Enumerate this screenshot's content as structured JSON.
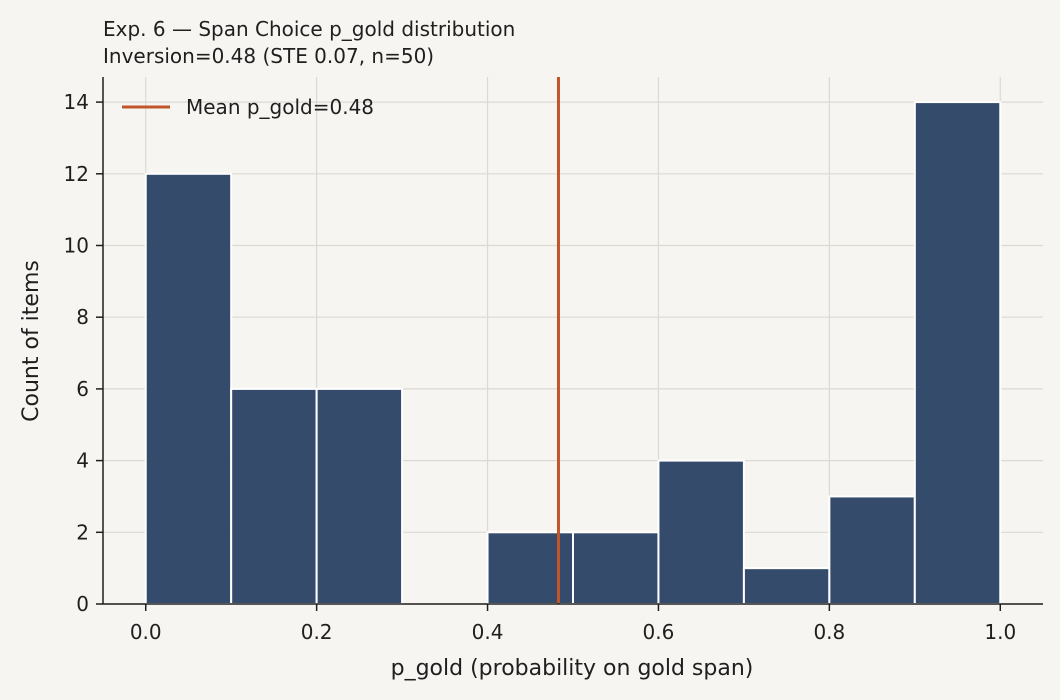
{
  "chart_data": {
    "type": "bar",
    "title_line1": "Exp. 6 — Span Choice p_gold distribution",
    "title_line2": "Inversion=0.48 (STE 0.07, n=50)",
    "xlabel": "p_gold (probability on gold span)",
    "ylabel": "Count of items",
    "bins": [
      {
        "x0": 0.0,
        "x1": 0.1,
        "count": 12
      },
      {
        "x0": 0.1,
        "x1": 0.2,
        "count": 6
      },
      {
        "x0": 0.2,
        "x1": 0.3,
        "count": 6
      },
      {
        "x0": 0.3,
        "x1": 0.4,
        "count": 0
      },
      {
        "x0": 0.4,
        "x1": 0.5,
        "count": 2
      },
      {
        "x0": 0.5,
        "x1": 0.6,
        "count": 2
      },
      {
        "x0": 0.6,
        "x1": 0.7,
        "count": 4
      },
      {
        "x0": 0.7,
        "x1": 0.8,
        "count": 1
      },
      {
        "x0": 0.8,
        "x1": 0.9,
        "count": 3
      },
      {
        "x0": 0.9,
        "x1": 1.0,
        "count": 14
      }
    ],
    "mean_line": {
      "x": 0.483,
      "label": "Mean p_gold=0.48"
    },
    "xlim": [
      -0.05,
      1.05
    ],
    "ylim": [
      0,
      14.7
    ],
    "xticks": [
      0.0,
      0.2,
      0.4,
      0.6,
      0.8,
      1.0
    ],
    "xtick_labels": [
      "0.0",
      "0.2",
      "0.4",
      "0.6",
      "0.8",
      "1.0"
    ],
    "yticks": [
      0,
      2,
      4,
      6,
      8,
      10,
      12,
      14
    ],
    "ytick_labels": [
      "0",
      "2",
      "4",
      "6",
      "8",
      "10",
      "12",
      "14"
    ],
    "grid": true,
    "legend_position": "top-left",
    "colors": {
      "bar": "#2e4567",
      "bar_edge": "#ffffff",
      "mean_line": "#c0552a",
      "grid": "#dcd9d3",
      "axis": "#1f1f1f",
      "background": "#f7f5f1"
    }
  }
}
